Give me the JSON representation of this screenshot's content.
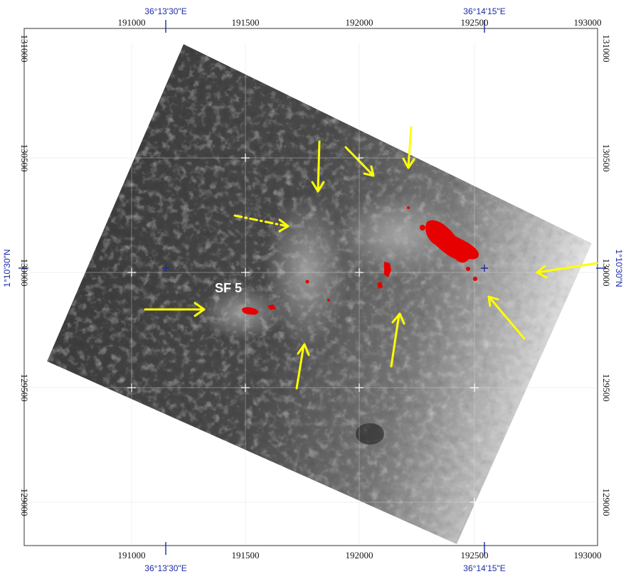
{
  "map": {
    "site_label": "SF 5",
    "geo_lon_left": "36°13'30\"E",
    "geo_lon_right": "36°14'15\"E",
    "geo_lat": "1°10'30\"N",
    "x_ticks": [
      "191000",
      "191500",
      "192000",
      "192500",
      "193000"
    ],
    "y_ticks": [
      "131000",
      "130500",
      "130000",
      "129500",
      "129000"
    ],
    "colors": {
      "frame": "#555555",
      "grid": "#d9d9d9",
      "highlight": "#e60000",
      "arrow": "#ffff00",
      "geo_label": "#1a2aa8",
      "geo_cross": "#1a2aa8"
    }
  }
}
